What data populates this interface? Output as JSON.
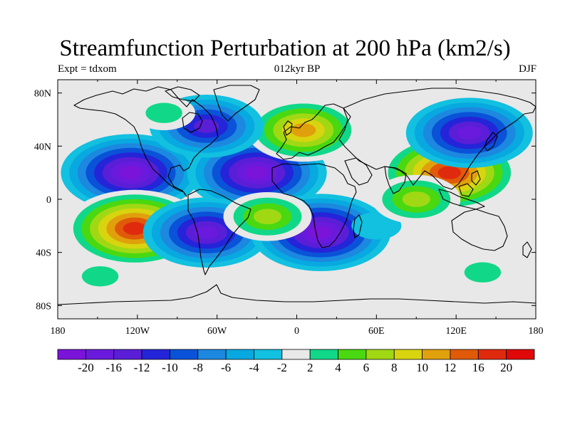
{
  "title": "Streamfunction Perturbation at 200 hPa (km2/s)",
  "subtitle_left": "Expt = tdxom",
  "subtitle_center": "012kyr BP",
  "subtitle_right": "DJF",
  "lon_ticks": [
    "180",
    "120W",
    "60W",
    "0",
    "60E",
    "120E",
    "180"
  ],
  "lat_ticks": [
    "80N",
    "40N",
    "0",
    "40S",
    "80S"
  ],
  "colorbar": {
    "labels": [
      "-20",
      "-16",
      "-12",
      "-10",
      "-8",
      "-6",
      "-4",
      "-2",
      "2",
      "4",
      "6",
      "8",
      "10",
      "12",
      "16",
      "20"
    ],
    "colors": [
      "#7a14d8",
      "#6a1adc",
      "#5a1ed6",
      "#2424d8",
      "#0a52d8",
      "#1c88e0",
      "#08a8e0",
      "#12c0e0",
      "#e8e8e8",
      "#10d888",
      "#4ad810",
      "#a0d814",
      "#d8d410",
      "#e0a00c",
      "#e05a0a",
      "#e02a0e",
      "#e00808"
    ]
  },
  "chart_data": {
    "type": "heatmap",
    "title": "Streamfunction Perturbation at 200 hPa (km2/s)",
    "experiment": "tdxom",
    "period": "012kyr BP",
    "season": "DJF",
    "lon_range": [
      -180,
      180
    ],
    "lat_range": [
      -90,
      90
    ],
    "levels": [
      -20,
      -16,
      -12,
      -10,
      -8,
      -6,
      -4,
      -2,
      2,
      4,
      6,
      8,
      10,
      12,
      16,
      20
    ],
    "features": [
      {
        "lon": -125,
        "lat": 20,
        "value": -20
      },
      {
        "lon": -122,
        "lat": -22,
        "value": 21
      },
      {
        "lon": -30,
        "lat": 20,
        "value": -20
      },
      {
        "lon": -68,
        "lat": -25,
        "value": -17
      },
      {
        "lon": 18,
        "lat": -25,
        "value": -20
      },
      {
        "lon": -22,
        "lat": -13,
        "value": 8
      },
      {
        "lon": 5,
        "lat": 52,
        "value": 15
      },
      {
        "lon": 115,
        "lat": 20,
        "value": 20
      },
      {
        "lon": 130,
        "lat": 50,
        "value": -17
      },
      {
        "lon": -68,
        "lat": 55,
        "value": -13
      },
      {
        "lon": 140,
        "lat": -55,
        "value": 5
      },
      {
        "lon": -148,
        "lat": -58,
        "value": 4
      },
      {
        "lon": 60,
        "lat": -20,
        "value": -3
      },
      {
        "lon": 90,
        "lat": 0,
        "value": 8
      },
      {
        "lon": -100,
        "lat": 65,
        "value": 4
      }
    ]
  }
}
